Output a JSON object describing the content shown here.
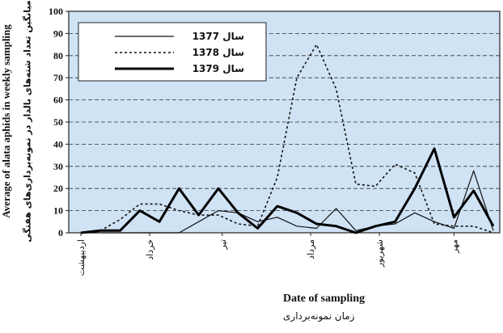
{
  "chart_data": {
    "type": "line",
    "title": "",
    "ylabel": "Average of alata aphids in weekly sampling",
    "ylabel_fa": "میانگین تعداد شته‌های بالدار در نمونه‌برداری‌های هفتگی",
    "xlabel": "Date of sampling",
    "xlabel_fa": "زمان نمونه‌برداری",
    "ylim": [
      0,
      100
    ],
    "yticks": [
      0,
      10,
      20,
      30,
      40,
      50,
      60,
      70,
      80,
      90,
      100
    ],
    "x_tick_labels": [
      "اردیبهشت",
      "خرداد",
      "تیر",
      "مرداد",
      "شهریور",
      "مهر"
    ],
    "grid": "horizontal-dashed",
    "legend_position": "top-left",
    "x": [
      1,
      2,
      3,
      4,
      5,
      6,
      7,
      8,
      9,
      10,
      11,
      12,
      13,
      14,
      15,
      16,
      17,
      18,
      19,
      20,
      21,
      22
    ],
    "series": [
      {
        "name": "سال 1377",
        "style": "thin-solid",
        "values": [
          0,
          0,
          0,
          0,
          0,
          0,
          5,
          10,
          9,
          5,
          7,
          3,
          2,
          11,
          1,
          3,
          4,
          9,
          5,
          2,
          28,
          1
        ]
      },
      {
        "name": "سال 1378",
        "style": "dotted",
        "values": [
          0,
          1,
          6,
          13,
          13,
          10,
          8,
          8,
          4,
          3,
          25,
          70,
          85,
          65,
          22,
          21,
          31,
          27,
          4,
          3,
          3,
          0
        ]
      },
      {
        "name": "سال 1379",
        "style": "thick-solid",
        "values": [
          0,
          1,
          1,
          10,
          5,
          20,
          8,
          20,
          9,
          2,
          12,
          9,
          4,
          3,
          0,
          3,
          5,
          20,
          38,
          7,
          19,
          3
        ]
      }
    ]
  }
}
